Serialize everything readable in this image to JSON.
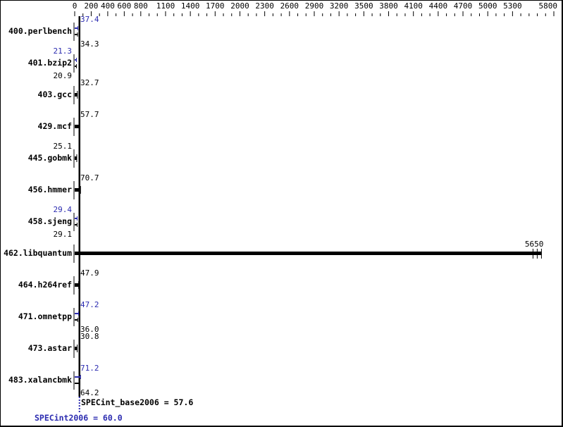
{
  "chart_data": {
    "type": "bar",
    "orientation": "horizontal",
    "xlim": [
      0,
      5800
    ],
    "tick_labels": [
      "0",
      "200",
      "400",
      "600",
      "800",
      "1100",
      "1400",
      "1700",
      "2000",
      "2300",
      "2600",
      "2900",
      "3200",
      "3500",
      "3800",
      "4100",
      "4400",
      "4700",
      "5000",
      "5300",
      "5800"
    ],
    "categories": [
      "400.perlbench",
      "401.bzip2",
      "403.gcc",
      "429.mcf",
      "445.gobmk",
      "456.hmmer",
      "458.sjeng",
      "462.libquantum",
      "464.h264ref",
      "471.omnetpp",
      "473.astar",
      "483.xalancbmk"
    ],
    "series": [
      {
        "name": "base",
        "values": [
          34.3,
          20.9,
          32.7,
          57.7,
          25.1,
          70.7,
          29.1,
          5650,
          47.9,
          36.0,
          30.8,
          64.2
        ]
      },
      {
        "name": "peak",
        "values": [
          37.4,
          21.3,
          null,
          null,
          null,
          null,
          29.4,
          null,
          null,
          47.2,
          null,
          71.2
        ]
      }
    ],
    "base_label": [
      "34.3",
      "20.9",
      "32.7",
      "57.7",
      "25.1",
      "70.7",
      "29.1",
      "5650",
      "47.9",
      "36.0",
      "30.8",
      "64.2"
    ],
    "peak_label": [
      "37.4",
      "21.3",
      "",
      "",
      "",
      "",
      "29.4",
      "",
      "",
      "47.2",
      "",
      "71.2"
    ],
    "summary": {
      "base_text": "SPECint_base2006 = 57.6",
      "base_value": 57.6,
      "peak_text": "SPECint2006 = 60.0",
      "peak_value": 60.0
    },
    "colors": {
      "base": "#000000",
      "peak": "#2b2bb0"
    }
  }
}
